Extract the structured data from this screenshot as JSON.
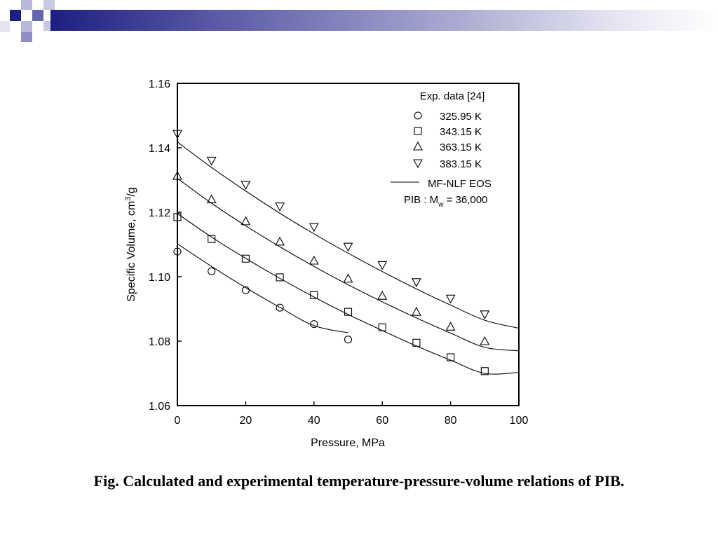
{
  "header": {
    "colors": {
      "dark": "#1e1e80",
      "mid": "#6666aa",
      "light": "#b8b8d8"
    }
  },
  "caption": "Fig.  Calculated and experimental temperature-pressure-volume relations of PIB.",
  "chart_data": {
    "type": "scatter",
    "xlabel": "Pressure, MPa",
    "ylabel_prefix": "Specific Volume, cm",
    "ylabel_sup": "3",
    "ylabel_suffix": "/g",
    "xlim": [
      0,
      100
    ],
    "ylim": [
      1.06,
      1.16
    ],
    "xticks": [
      0,
      20,
      40,
      60,
      80,
      100
    ],
    "yticks": [
      1.06,
      1.08,
      1.1,
      1.12,
      1.14,
      1.16
    ],
    "xtick_labels": [
      "0",
      "20",
      "40",
      "60",
      "80",
      "100"
    ],
    "ytick_labels": [
      "1.06",
      "1.08",
      "1.10",
      "1.12",
      "1.14",
      "1.16"
    ],
    "grid": false,
    "legend": {
      "position": "top-right",
      "title": "Exp. data [24]",
      "line_label": "MF-NLF EOS",
      "note_prefix": "PIB : M",
      "note_sub": "w",
      "note_suffix": " = 36,000"
    },
    "series": [
      {
        "name": "325.95 K",
        "marker": "circle",
        "points": [
          [
            0,
            1.1078
          ],
          [
            10,
            1.1017
          ],
          [
            20,
            1.0958
          ],
          [
            30,
            1.0904
          ],
          [
            40,
            1.0853
          ],
          [
            50,
            1.0805
          ]
        ],
        "model": [
          [
            0,
            1.1102
          ],
          [
            10,
            1.1032
          ],
          [
            20,
            1.0966
          ],
          [
            30,
            1.0905
          ],
          [
            40,
            1.0848
          ],
          [
            50,
            1.0826
          ]
        ],
        "model_end": 50
      },
      {
        "name": "343.15 K",
        "marker": "square",
        "points": [
          [
            0,
            1.1185
          ],
          [
            10,
            1.1117
          ],
          [
            20,
            1.1056
          ],
          [
            30,
            1.0998
          ],
          [
            40,
            1.0943
          ],
          [
            50,
            1.0891
          ],
          [
            60,
            1.0843
          ],
          [
            70,
            1.0795
          ],
          [
            80,
            1.075
          ],
          [
            90,
            1.0707
          ]
        ],
        "model": [
          [
            0,
            1.1196
          ],
          [
            10,
            1.1123
          ],
          [
            20,
            1.1057
          ],
          [
            30,
            1.0995
          ],
          [
            40,
            1.0937
          ],
          [
            50,
            1.0883
          ],
          [
            60,
            1.0833
          ],
          [
            70,
            1.0785
          ],
          [
            80,
            1.0741
          ],
          [
            90,
            1.07
          ],
          [
            100,
            1.0703
          ]
        ],
        "model_end": 100
      },
      {
        "name": "363.15 K",
        "marker": "triangle-up",
        "points": [
          [
            0,
            1.1313
          ],
          [
            10,
            1.124
          ],
          [
            20,
            1.1172
          ],
          [
            30,
            1.1109
          ],
          [
            40,
            1.105
          ],
          [
            50,
            1.0994
          ],
          [
            60,
            1.0941
          ],
          [
            70,
            1.0891
          ],
          [
            80,
            1.0845
          ],
          [
            90,
            1.08
          ]
        ],
        "model": [
          [
            0,
            1.1305
          ],
          [
            10,
            1.1228
          ],
          [
            20,
            1.1158
          ],
          [
            30,
            1.1093
          ],
          [
            40,
            1.1032
          ],
          [
            50,
            1.0975
          ],
          [
            60,
            1.0922
          ],
          [
            70,
            1.0872
          ],
          [
            80,
            1.0825
          ],
          [
            90,
            1.0781
          ],
          [
            100,
            1.077
          ]
        ],
        "model_end": 100
      },
      {
        "name": "383.15 K",
        "marker": "triangle-down",
        "points": [
          [
            0,
            1.1443
          ],
          [
            10,
            1.136
          ],
          [
            20,
            1.1285
          ],
          [
            30,
            1.1218
          ],
          [
            40,
            1.1154
          ],
          [
            50,
            1.1093
          ],
          [
            60,
            1.1036
          ],
          [
            70,
            1.0983
          ],
          [
            80,
            1.0932
          ],
          [
            90,
            1.0883
          ]
        ],
        "model": [
          [
            0,
            1.1418
          ],
          [
            10,
            1.1339
          ],
          [
            20,
            1.1266
          ],
          [
            30,
            1.1197
          ],
          [
            40,
            1.1133
          ],
          [
            50,
            1.1073
          ],
          [
            60,
            1.1016
          ],
          [
            70,
            1.0962
          ],
          [
            80,
            1.0912
          ],
          [
            90,
            1.0865
          ],
          [
            100,
            1.084
          ]
        ],
        "model_end": 100
      }
    ]
  }
}
